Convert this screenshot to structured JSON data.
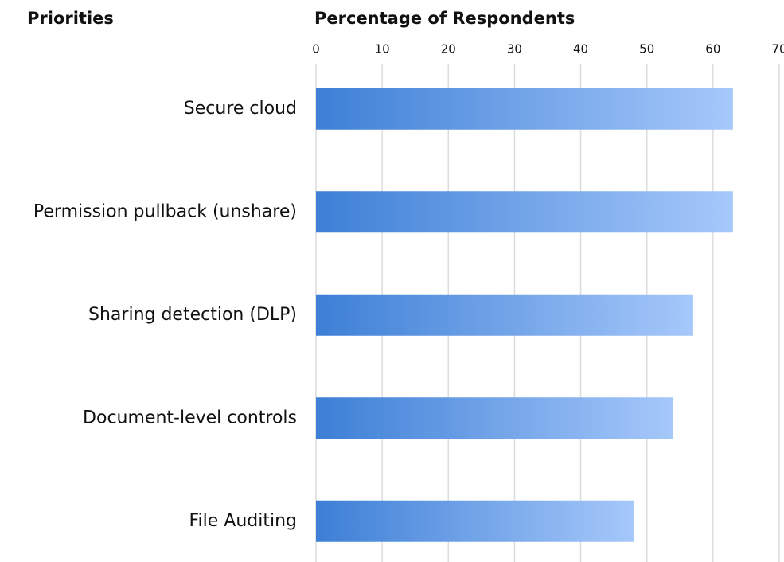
{
  "chart_data": {
    "type": "bar",
    "orientation": "horizontal",
    "title": "Percentage of Respondents",
    "category_axis_title": "Priorities",
    "categories": [
      "Secure cloud",
      "Permission pullback (unshare)",
      "Sharing detection (DLP)",
      "Document-level controls",
      "File Auditing"
    ],
    "values": [
      63,
      63,
      57,
      54,
      48
    ],
    "color": "#3d7fd6",
    "color_end": "#a6c8fa",
    "xlim": [
      0,
      70
    ],
    "xticks": [
      0,
      10,
      20,
      30,
      40,
      50,
      60,
      70
    ],
    "grid": true
  }
}
